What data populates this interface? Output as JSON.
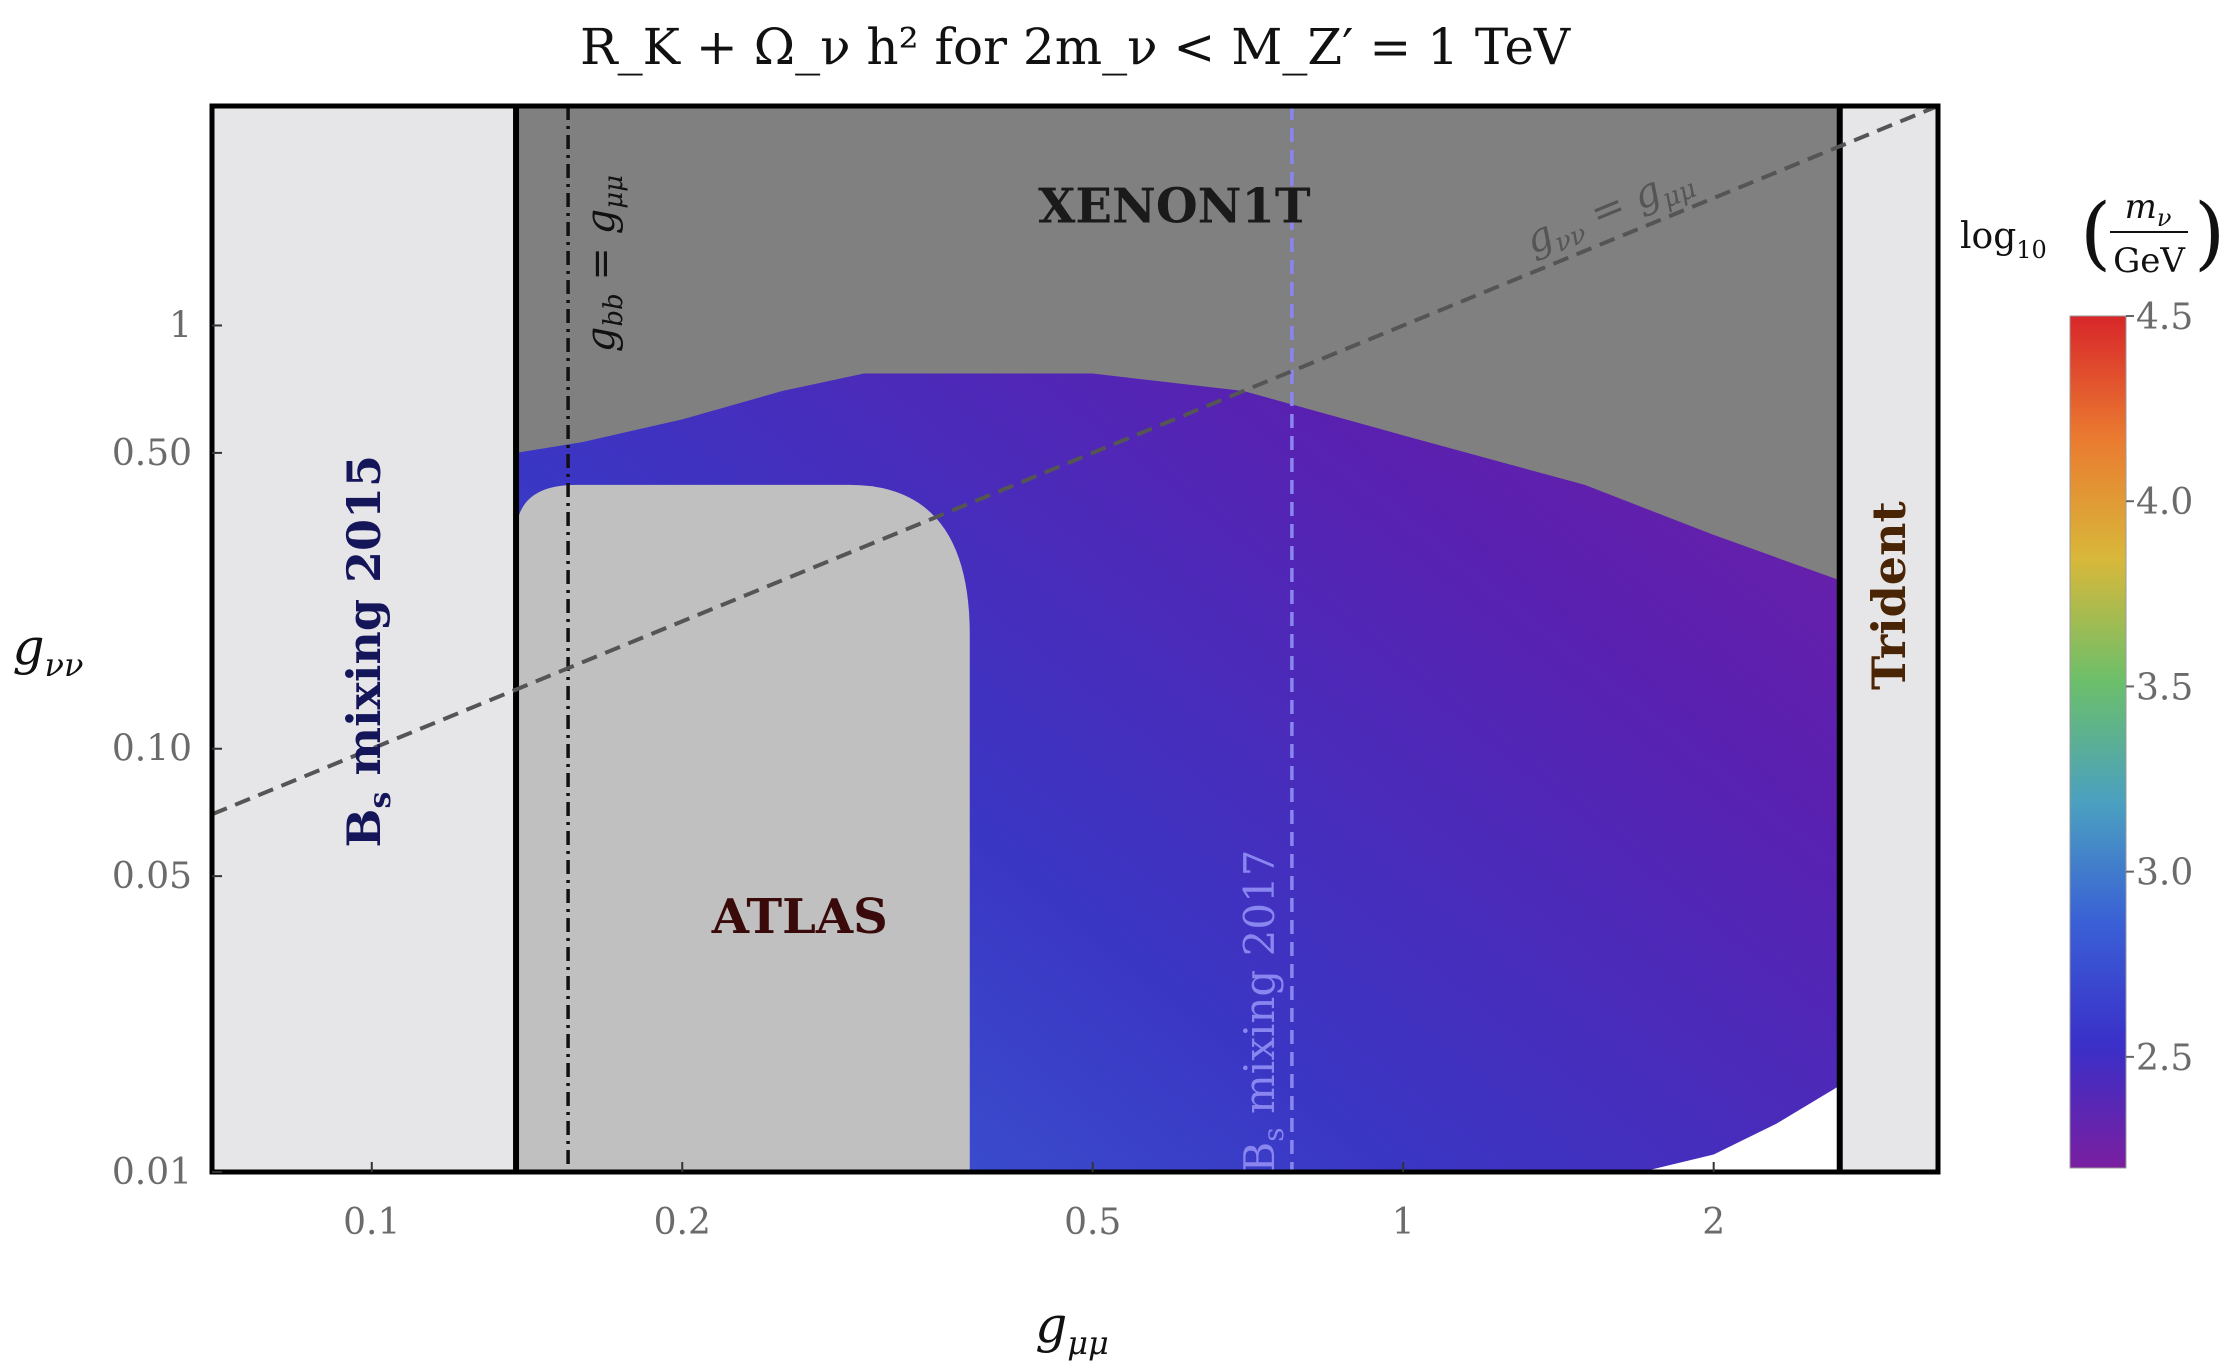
{
  "chart_data": {
    "type": "heatmap",
    "title": "R_K + Ω_ν h² for 2m_ν < M_Z′ = 1 TeV",
    "xlabel": "g_μμ",
    "ylabel": "g_νν",
    "x_scale": "log",
    "y_scale": "log",
    "xlim": [
      0.07,
      3.3
    ],
    "ylim": [
      0.01,
      3.3
    ],
    "x_ticks": [
      {
        "value": 0.1,
        "label": "0.1"
      },
      {
        "value": 0.2,
        "label": "0.2"
      },
      {
        "value": 0.5,
        "label": "0.5"
      },
      {
        "value": 1,
        "label": "1"
      },
      {
        "value": 2,
        "label": "2"
      }
    ],
    "y_ticks": [
      {
        "value": 0.01,
        "label": "0.01"
      },
      {
        "value": 0.05,
        "label": "0.05"
      },
      {
        "value": 0.1,
        "label": "0.10"
      },
      {
        "value": 0.5,
        "label": "0.50"
      },
      {
        "value": 1,
        "label": "1"
      }
    ],
    "colorbar": {
      "label_prefix": "log",
      "label_sub": "10",
      "label_num": "m_ν",
      "label_den": "GeV",
      "range": [
        2.2,
        4.5
      ],
      "ticks": [
        "2.5",
        "3.0",
        "3.5",
        "4.0",
        "4.5"
      ],
      "tick_values": [
        2.5,
        3.0,
        3.5,
        4.0,
        4.5
      ],
      "stops": [
        "#7a1fa0",
        "#3a2fc8",
        "#3a5fd6",
        "#4aa0c0",
        "#6cbf6a",
        "#d8b83a",
        "#ea7a30",
        "#d8262a"
      ]
    },
    "regions": [
      {
        "name": "B_s mixing 2015",
        "label": "Bs mixing 2015",
        "type": "excluded",
        "g_mumu_max": 0.138,
        "color": "#e6e6e9",
        "label_color": "#15155a"
      },
      {
        "name": "Trident",
        "label": "Trident",
        "type": "excluded",
        "g_mumu_min": 2.65,
        "color": "#e6e6e9",
        "label_color": "#4a2505"
      },
      {
        "name": "XENON1T",
        "label": "XENON1T",
        "type": "excluded",
        "color": "#808080",
        "label_color": "#1a1a1a"
      },
      {
        "name": "ATLAS",
        "label": "ATLAS",
        "type": "excluded",
        "g_mumu_max": 0.38,
        "g_nunu_max": 0.42,
        "color": "#c0c0c0",
        "label_color": "#3a0a0a"
      },
      {
        "name": "allowed",
        "type": "heatmap",
        "colors": [
          "#3a62d6",
          "#3a36c4",
          "#5a20b0",
          "#7a1fa0"
        ]
      }
    ],
    "lines": [
      {
        "name": "g_bb = g_μμ",
        "label": "g_bb = g_μμ",
        "type": "vertical",
        "x": 0.155,
        "style": "dash-dot",
        "color": "#111111"
      },
      {
        "name": "B_s mixing 2017",
        "label": "Bs mixing 2017",
        "type": "vertical",
        "x": 0.78,
        "style": "dashed",
        "color": "#8a86f0"
      },
      {
        "name": "g_νν = g_μμ",
        "label": "g_νν = g_μμ",
        "type": "diagonal",
        "style": "dashed",
        "color": "#555555"
      },
      {
        "name": "B_s mixing 2015 boundary",
        "type": "vertical",
        "x": 0.138,
        "style": "solid",
        "color": "#000000"
      },
      {
        "name": "Trident boundary",
        "type": "vertical",
        "x": 2.65,
        "style": "solid",
        "color": "#000000"
      }
    ],
    "xenon_boundary": [
      [
        0.138,
        0.5
      ],
      [
        0.16,
        0.53
      ],
      [
        0.2,
        0.6
      ],
      [
        0.25,
        0.7
      ],
      [
        0.3,
        0.77
      ],
      [
        0.5,
        0.77
      ],
      [
        0.7,
        0.7
      ],
      [
        1.0,
        0.55
      ],
      [
        1.5,
        0.42
      ],
      [
        2.0,
        0.32
      ],
      [
        2.65,
        0.25
      ]
    ],
    "allowed_lower_boundary": [
      [
        1.7,
        0.01
      ],
      [
        2.0,
        0.011
      ],
      [
        2.3,
        0.013
      ],
      [
        2.65,
        0.016
      ]
    ],
    "grid": false,
    "legend": "none"
  }
}
